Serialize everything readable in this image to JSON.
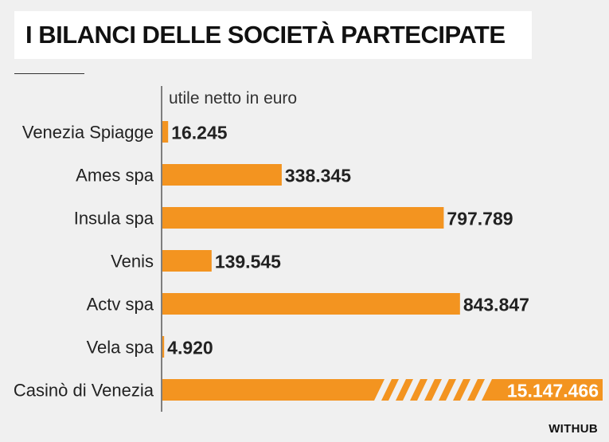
{
  "title": "I BILANCI DELLE SOCIETÀ PARTECIPATE",
  "brand": "WITHUB",
  "colors": {
    "bar": "#f39420",
    "background": "#f0f0f0",
    "text": "#222222"
  },
  "chart_data": {
    "type": "bar",
    "orientation": "horizontal",
    "title": "I BILANCI DELLE SOCIETÀ PARTECIPATE",
    "xlabel": "utile netto in euro",
    "ylabel": "",
    "categories": [
      "Venezia Spiagge",
      "Ames spa",
      "Insula spa",
      "Venis",
      "Actv spa",
      "Vela spa",
      "Casinò di Venezia"
    ],
    "values": [
      16245,
      338345,
      797789,
      139545,
      843847,
      4920,
      15147466
    ],
    "value_labels": [
      "16.245",
      "338.345",
      "797.789",
      "139.545",
      "843.847",
      "4.920",
      "15.147.466"
    ],
    "xlim": [
      0,
      1000000
    ],
    "axis_break": {
      "category": "Casinò di Venezia",
      "note": "bar truncated with diagonal hatching"
    },
    "grid": false,
    "legend": "none"
  }
}
